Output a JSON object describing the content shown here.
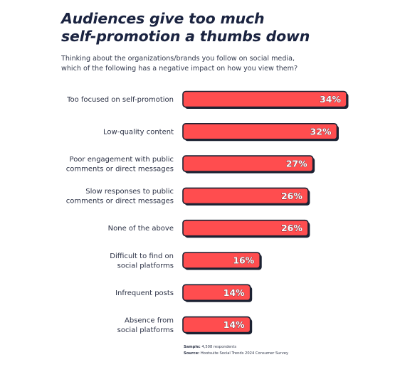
{
  "header": {
    "title_line1": "Audiences give too much",
    "title_line2": "self-promotion a thumbs down",
    "subtitle_line1": "Thinking about the organizations/brands you follow on social media,",
    "subtitle_line2": "which of the following has a negative impact on how you view them?"
  },
  "footnote": {
    "sample_label": "Sample:",
    "sample_value": "4,508 respondents",
    "source_label": "Source:",
    "source_value": "Hootsuite Social Trends 2024 Consumer Survey"
  },
  "colors": {
    "bar_fill": "#ff4d4f",
    "bar_stroke": "#1c2233",
    "value_text": "#ffffff",
    "label_text": "#2b3145"
  },
  "chart_data": {
    "type": "bar",
    "orientation": "horizontal",
    "categories": [
      [
        "Too focused on self-promotion"
      ],
      [
        "Low-quality content"
      ],
      [
        "Poor engagement with public",
        "comments or direct messages"
      ],
      [
        "Slow responses to public",
        "comments or direct messages"
      ],
      [
        "None of the above"
      ],
      [
        "Difficult to find on",
        "social platforms"
      ],
      [
        "Infrequent posts"
      ],
      [
        "Absence from",
        "social platforms"
      ]
    ],
    "values": [
      34,
      32,
      27,
      26,
      26,
      16,
      14,
      14
    ],
    "value_labels": [
      "34%",
      "32%",
      "27%",
      "26%",
      "26%",
      "16%",
      "14%",
      "14%"
    ],
    "unit": "%",
    "xlim": [
      0,
      34
    ]
  }
}
